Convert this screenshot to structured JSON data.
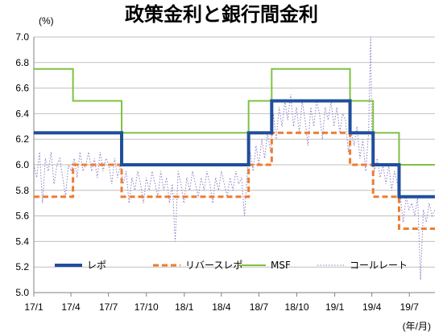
{
  "chart_data": {
    "type": "line",
    "title": "政策金利と銀行間金利",
    "y_unit_label": "(%)",
    "x_unit_label": "(年/月)",
    "ylim": [
      5.0,
      7.0
    ],
    "y_ticks": [
      "5.0",
      "5.2",
      "5.4",
      "5.6",
      "5.8",
      "6.0",
      "6.2",
      "6.4",
      "6.6",
      "6.8",
      "7.0"
    ],
    "x_range": [
      "2017-01-01",
      "2019-09-01"
    ],
    "x_ticks": [
      {
        "date": "2017-01-01",
        "label": "17/1"
      },
      {
        "date": "2017-04-01",
        "label": "17/4"
      },
      {
        "date": "2017-07-01",
        "label": "17/7"
      },
      {
        "date": "2017-10-01",
        "label": "17/10"
      },
      {
        "date": "2018-01-01",
        "label": "18/1"
      },
      {
        "date": "2018-04-01",
        "label": "18/4"
      },
      {
        "date": "2018-07-01",
        "label": "18/7"
      },
      {
        "date": "2018-10-01",
        "label": "18/10"
      },
      {
        "date": "2019-01-01",
        "label": "19/1"
      },
      {
        "date": "2019-04-01",
        "label": "19/4"
      },
      {
        "date": "2019-07-01",
        "label": "19/7"
      }
    ],
    "grid": "horizontal",
    "legend": "bottom",
    "series": [
      {
        "name": "レポ",
        "color": "#1f4e9c",
        "style": "step",
        "points": [
          [
            "2017-01-01",
            6.25
          ],
          [
            "2017-08-02",
            6.0
          ],
          [
            "2018-06-06",
            6.25
          ],
          [
            "2018-08-01",
            6.5
          ],
          [
            "2019-02-07",
            6.25
          ],
          [
            "2019-04-04",
            6.0
          ],
          [
            "2019-06-06",
            5.75
          ],
          [
            "2019-09-01",
            5.75
          ]
        ]
      },
      {
        "name": "リバースレポ",
        "color": "#ed7d31",
        "style": "step",
        "points": [
          [
            "2017-01-01",
            5.75
          ],
          [
            "2017-04-06",
            6.0
          ],
          [
            "2017-08-02",
            5.75
          ],
          [
            "2018-06-06",
            6.0
          ],
          [
            "2018-08-01",
            6.25
          ],
          [
            "2019-02-07",
            6.0
          ],
          [
            "2019-04-04",
            5.75
          ],
          [
            "2019-06-06",
            5.5
          ],
          [
            "2019-09-01",
            5.5
          ]
        ]
      },
      {
        "name": "MSF",
        "color": "#7ec242",
        "style": "step",
        "points": [
          [
            "2017-01-01",
            6.75
          ],
          [
            "2017-04-06",
            6.5
          ],
          [
            "2017-08-02",
            6.25
          ],
          [
            "2018-06-06",
            6.5
          ],
          [
            "2018-08-01",
            6.75
          ],
          [
            "2019-02-07",
            6.5
          ],
          [
            "2019-04-04",
            6.25
          ],
          [
            "2019-06-06",
            6.0
          ],
          [
            "2019-09-01",
            6.0
          ]
        ]
      },
      {
        "name": "コールレート",
        "color": "#8e7cc3",
        "style": "dotted",
        "points": [
          [
            "2017-01-01",
            6.0
          ],
          [
            "2017-01-08",
            5.9
          ],
          [
            "2017-01-15",
            6.1
          ],
          [
            "2017-01-22",
            5.7
          ],
          [
            "2017-01-29",
            6.05
          ],
          [
            "2017-02-05",
            5.95
          ],
          [
            "2017-02-12",
            6.1
          ],
          [
            "2017-02-19",
            5.85
          ],
          [
            "2017-02-26",
            6.0
          ],
          [
            "2017-03-05",
            6.05
          ],
          [
            "2017-03-12",
            5.9
          ],
          [
            "2017-03-19",
            5.75
          ],
          [
            "2017-03-26",
            6.0
          ],
          [
            "2017-04-02",
            5.95
          ],
          [
            "2017-04-09",
            6.05
          ],
          [
            "2017-04-16",
            5.9
          ],
          [
            "2017-04-23",
            6.1
          ],
          [
            "2017-04-30",
            5.95
          ],
          [
            "2017-05-07",
            6.0
          ],
          [
            "2017-05-14",
            6.1
          ],
          [
            "2017-05-21",
            5.95
          ],
          [
            "2017-05-28",
            6.05
          ],
          [
            "2017-06-04",
            5.9
          ],
          [
            "2017-06-11",
            6.1
          ],
          [
            "2017-06-18",
            5.95
          ],
          [
            "2017-06-25",
            6.05
          ],
          [
            "2017-07-02",
            6.0
          ],
          [
            "2017-07-09",
            5.85
          ],
          [
            "2017-07-16",
            6.05
          ],
          [
            "2017-07-23",
            5.9
          ],
          [
            "2017-07-30",
            6.0
          ],
          [
            "2017-08-06",
            5.85
          ],
          [
            "2017-08-13",
            5.95
          ],
          [
            "2017-08-20",
            5.7
          ],
          [
            "2017-08-27",
            5.9
          ],
          [
            "2017-09-03",
            5.8
          ],
          [
            "2017-09-10",
            5.95
          ],
          [
            "2017-09-17",
            5.85
          ],
          [
            "2017-09-24",
            5.7
          ],
          [
            "2017-10-01",
            5.9
          ],
          [
            "2017-10-08",
            5.8
          ],
          [
            "2017-10-15",
            5.95
          ],
          [
            "2017-10-22",
            5.85
          ],
          [
            "2017-10-29",
            5.75
          ],
          [
            "2017-11-05",
            5.95
          ],
          [
            "2017-11-12",
            5.8
          ],
          [
            "2017-11-19",
            5.9
          ],
          [
            "2017-11-26",
            5.7
          ],
          [
            "2017-12-03",
            5.85
          ],
          [
            "2017-12-10",
            5.4
          ],
          [
            "2017-12-17",
            5.95
          ],
          [
            "2017-12-24",
            5.85
          ],
          [
            "2017-12-31",
            5.7
          ],
          [
            "2018-01-07",
            5.9
          ],
          [
            "2018-01-14",
            5.8
          ],
          [
            "2018-01-21",
            5.95
          ],
          [
            "2018-01-28",
            5.85
          ],
          [
            "2018-02-04",
            5.75
          ],
          [
            "2018-02-11",
            5.9
          ],
          [
            "2018-02-18",
            5.8
          ],
          [
            "2018-02-25",
            5.95
          ],
          [
            "2018-03-04",
            5.85
          ],
          [
            "2018-03-11",
            5.7
          ],
          [
            "2018-03-18",
            5.9
          ],
          [
            "2018-03-25",
            5.8
          ],
          [
            "2018-04-01",
            5.95
          ],
          [
            "2018-04-08",
            5.85
          ],
          [
            "2018-04-15",
            5.75
          ],
          [
            "2018-04-22",
            5.9
          ],
          [
            "2018-04-29",
            5.8
          ],
          [
            "2018-05-06",
            5.95
          ],
          [
            "2018-05-13",
            5.85
          ],
          [
            "2018-05-20",
            5.9
          ],
          [
            "2018-05-27",
            5.6
          ],
          [
            "2018-06-03",
            5.95
          ],
          [
            "2018-06-10",
            6.1
          ],
          [
            "2018-06-17",
            5.95
          ],
          [
            "2018-06-24",
            6.15
          ],
          [
            "2018-07-01",
            6.0
          ],
          [
            "2018-07-08",
            6.2
          ],
          [
            "2018-07-15",
            6.05
          ],
          [
            "2018-07-22",
            6.25
          ],
          [
            "2018-07-29",
            6.1
          ],
          [
            "2018-08-05",
            6.4
          ],
          [
            "2018-08-12",
            6.2
          ],
          [
            "2018-08-19",
            6.45
          ],
          [
            "2018-08-26",
            6.3
          ],
          [
            "2018-09-02",
            6.5
          ],
          [
            "2018-09-09",
            6.35
          ],
          [
            "2018-09-16",
            6.55
          ],
          [
            "2018-09-23",
            6.3
          ],
          [
            "2018-09-30",
            6.45
          ],
          [
            "2018-10-07",
            6.25
          ],
          [
            "2018-10-14",
            6.5
          ],
          [
            "2018-10-21",
            6.35
          ],
          [
            "2018-10-28",
            6.15
          ],
          [
            "2018-11-04",
            6.45
          ],
          [
            "2018-11-11",
            6.3
          ],
          [
            "2018-11-18",
            6.5
          ],
          [
            "2018-11-25",
            6.4
          ],
          [
            "2018-12-02",
            6.2
          ],
          [
            "2018-12-09",
            6.45
          ],
          [
            "2018-12-16",
            6.35
          ],
          [
            "2018-12-23",
            6.5
          ],
          [
            "2018-12-30",
            6.3
          ],
          [
            "2019-01-06",
            6.45
          ],
          [
            "2019-01-13",
            6.25
          ],
          [
            "2019-01-20",
            6.4
          ],
          [
            "2019-01-27",
            6.35
          ],
          [
            "2019-02-03",
            6.1
          ],
          [
            "2019-02-10",
            6.25
          ],
          [
            "2019-02-17",
            6.15
          ],
          [
            "2019-02-24",
            6.3
          ],
          [
            "2019-03-03",
            6.05
          ],
          [
            "2019-03-10",
            6.2
          ],
          [
            "2019-03-17",
            5.95
          ],
          [
            "2019-03-24",
            6.25
          ],
          [
            "2019-03-29",
            7.0
          ],
          [
            "2019-04-01",
            6.2
          ],
          [
            "2019-04-07",
            5.95
          ],
          [
            "2019-04-14",
            6.05
          ],
          [
            "2019-04-21",
            5.9
          ],
          [
            "2019-04-28",
            6.0
          ],
          [
            "2019-05-05",
            5.85
          ],
          [
            "2019-05-12",
            6.0
          ],
          [
            "2019-05-19",
            5.8
          ],
          [
            "2019-05-26",
            5.95
          ],
          [
            "2019-06-02",
            5.85
          ],
          [
            "2019-06-09",
            5.75
          ],
          [
            "2019-06-16",
            5.55
          ],
          [
            "2019-06-23",
            5.75
          ],
          [
            "2019-06-30",
            5.65
          ],
          [
            "2019-07-07",
            5.7
          ],
          [
            "2019-07-14",
            5.6
          ],
          [
            "2019-07-21",
            5.75
          ],
          [
            "2019-07-28",
            5.1
          ],
          [
            "2019-08-04",
            5.65
          ],
          [
            "2019-08-11",
            5.55
          ],
          [
            "2019-08-18",
            5.7
          ],
          [
            "2019-08-25",
            5.6
          ],
          [
            "2019-09-01",
            5.65
          ]
        ]
      }
    ]
  }
}
